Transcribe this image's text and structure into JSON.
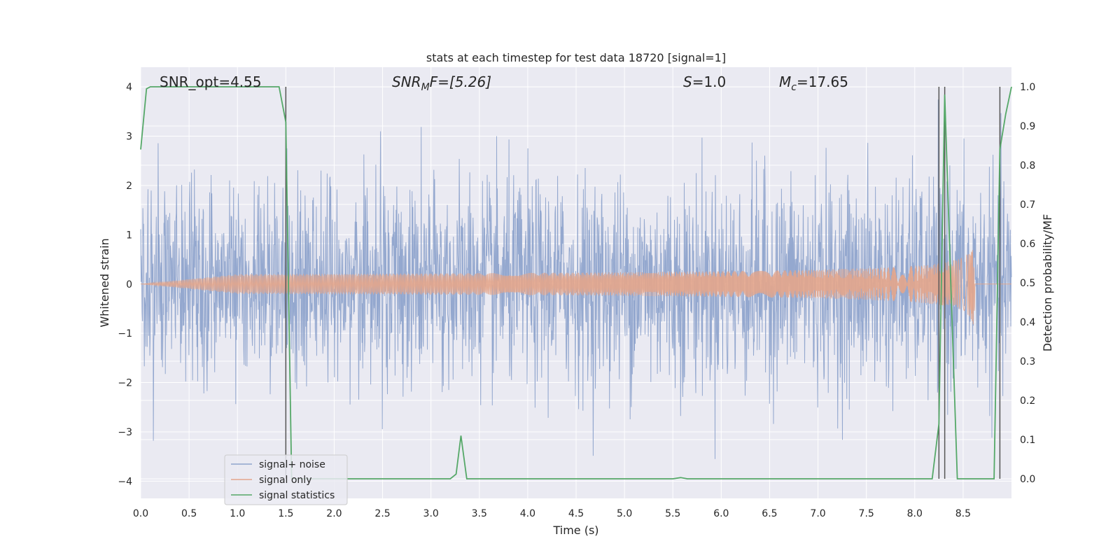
{
  "chart_data": {
    "type": "line",
    "title": "stats at each timestep for test data 18720 [signal=1]",
    "xlabel": "Time (s)",
    "ylabel": "Whitened strain",
    "y2label": "Detection probability/MF",
    "xlim": [
      0.0,
      9.0
    ],
    "ylim": [
      -4.35,
      4.4
    ],
    "y2lim": [
      -0.05,
      1.05
    ],
    "xticks": [
      "0.0",
      "0.5",
      "1.0",
      "1.5",
      "2.0",
      "2.5",
      "3.0",
      "3.5",
      "4.0",
      "4.5",
      "5.0",
      "5.5",
      "6.0",
      "6.5",
      "7.0",
      "7.5",
      "8.0",
      "8.5"
    ],
    "yticks": [
      "4",
      "3",
      "2",
      "1",
      "0",
      "−1",
      "−2",
      "−3",
      "−4"
    ],
    "y2ticks": [
      "1.0",
      "0.9",
      "0.8",
      "0.7",
      "0.6",
      "0.5",
      "0.4",
      "0.3",
      "0.2",
      "0.1",
      "0.0"
    ],
    "grid": true,
    "legend_position": "lower-left",
    "annotations": {
      "snr_opt": "SNR_opt=4.55",
      "snr_mf_main": "SNR",
      "snr_mf_sub": "M",
      "snr_mf_rest": "F=[5.26]",
      "s_italic": "S",
      "s_rest": "=1.0",
      "mc_main": "M",
      "mc_sub": "c",
      "mc_rest": "=17.65"
    },
    "series": [
      {
        "name": "signal+ noise",
        "color": "#8fa4cc",
        "description_values": "white noise, envelope about ±2.2, peaks to ±4"
      },
      {
        "name": "signal only",
        "color": "#e3a58b",
        "chirp": {
          "start_time": 4.5,
          "merger_time": 8.62,
          "peak_amplitude": 1.05
        }
      },
      {
        "name": "signal statistics",
        "color": "#55a868",
        "axis": "right",
        "x": [
          0.0,
          0.06,
          0.1,
          0.2,
          0.5,
          1.0,
          1.43,
          1.5,
          1.56,
          1.6,
          2.0,
          2.5,
          3.0,
          3.2,
          3.26,
          3.31,
          3.37,
          3.5,
          4.0,
          5.0,
          5.5,
          5.58,
          5.65,
          6.0,
          7.0,
          8.0,
          8.18,
          8.25,
          8.31,
          8.37,
          8.44,
          8.6,
          8.82,
          8.88,
          8.94,
          9.0
        ],
        "y": [
          0.84,
          0.995,
          1.0,
          1.0,
          1.0,
          1.0,
          1.0,
          0.91,
          0.0,
          0.0,
          0.0,
          0.0,
          0.0,
          0.0,
          0.012,
          0.11,
          0.0,
          0.0,
          0.0,
          0.0,
          0.0,
          0.003,
          0.0,
          0.0,
          0.0,
          0.0,
          0.0,
          0.14,
          0.98,
          0.52,
          0.0,
          0.0,
          0.0,
          0.84,
          0.93,
          1.0
        ]
      }
    ],
    "vertical_markers": [
      1.5,
      8.25,
      8.31,
      8.88
    ]
  }
}
